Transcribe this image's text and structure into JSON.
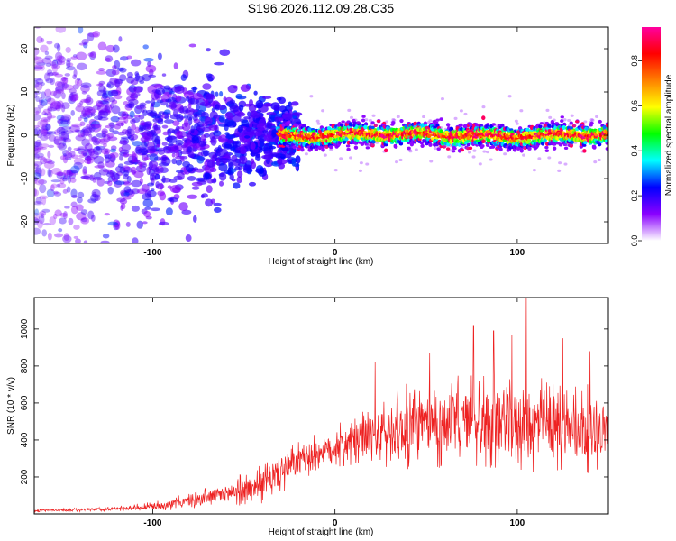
{
  "figure": {
    "title": "S196.2026.112.09.28.C35"
  },
  "chart_data": [
    {
      "type": "heatmap",
      "title": "",
      "xlabel": "Height of straight line (km)",
      "ylabel": "Frequency (Hz)",
      "xlim": [
        -165,
        150
      ],
      "ylim": [
        -25,
        25
      ],
      "xticks": [
        -100,
        0,
        100
      ],
      "xtick_labels": [
        "-100",
        "0",
        "100"
      ],
      "yticks": [
        -20,
        -10,
        0,
        10,
        20
      ],
      "ytick_labels": [
        "-20",
        "-10",
        "0",
        "10",
        "20"
      ],
      "description_values": {
        "ridge_frequency_hz": 0,
        "ridge_start_km": -25,
        "ridge_end_km": 150,
        "scatter_region_km": [
          -165,
          -25
        ]
      },
      "colorbar": {
        "label": "Normalized spectral amplitude",
        "range": [
          0.0,
          0.95
        ],
        "ticks": [
          0.0,
          0.2,
          0.4,
          0.6,
          0.8
        ],
        "tick_labels": [
          "0.0",
          "0.2",
          "0.4",
          "0.6",
          "0.8"
        ],
        "colors": [
          "#ffffff",
          "#8a00ff",
          "#0000ff",
          "#00ffff",
          "#00ff00",
          "#ffff00",
          "#ff8000",
          "#ff0000",
          "#ff00a0"
        ]
      }
    },
    {
      "type": "line",
      "title": "",
      "xlabel": "Height of straight line (km)",
      "ylabel": "SNR (10 * v/v)",
      "xlim": [
        -165,
        150
      ],
      "ylim": [
        0,
        1170
      ],
      "xticks": [
        -100,
        0,
        100
      ],
      "xtick_labels": [
        "-100",
        "0",
        "100"
      ],
      "yticks": [
        200,
        400,
        600,
        800,
        1000
      ],
      "ytick_labels": [
        "200",
        "400",
        "600",
        "800",
        "1000"
      ],
      "series": [
        {
          "name": "SNR",
          "color": "#ee2222",
          "x": [
            -165,
            -140,
            -120,
            -100,
            -80,
            -60,
            -40,
            -30,
            -20,
            -10,
            0,
            10,
            20,
            30,
            40,
            50,
            60,
            70,
            80,
            90,
            100,
            110,
            120,
            130,
            140,
            150
          ],
          "baseline": [
            18,
            22,
            28,
            40,
            70,
            110,
            160,
            230,
            280,
            330,
            360,
            390,
            420,
            440,
            470,
            480,
            490,
            500,
            500,
            500,
            490,
            480,
            470,
            470,
            460,
            450
          ],
          "spread": [
            8,
            10,
            14,
            25,
            45,
            70,
            110,
            140,
            120,
            110,
            120,
            150,
            190,
            220,
            240,
            250,
            260,
            270,
            280,
            280,
            280,
            270,
            260,
            250,
            240,
            230
          ],
          "peaks": [
            {
              "x": 105,
              "y": 1170
            },
            {
              "x": 76,
              "y": 1020
            },
            {
              "x": 87,
              "y": 990
            },
            {
              "x": 97,
              "y": 970
            },
            {
              "x": 125,
              "y": 950
            },
            {
              "x": 22,
              "y": 820
            },
            {
              "x": 52,
              "y": 870
            },
            {
              "x": 140,
              "y": 880
            }
          ]
        }
      ]
    }
  ]
}
